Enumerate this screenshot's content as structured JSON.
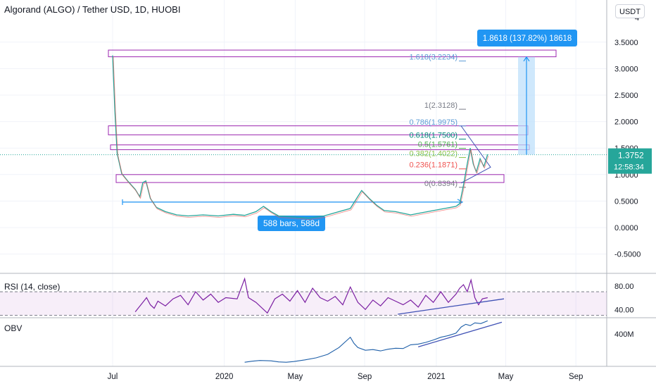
{
  "header": {
    "title": "Algorand (ALGO) / Tether USD, 1D, HUOBI",
    "currency_button": "USDT"
  },
  "chart_data": [
    {
      "type": "line",
      "id": "price",
      "y_ticks": [
        "3.5000",
        "3.0000",
        "2.5000",
        "2.0000",
        "1.5000",
        "1.0000",
        "0.5000",
        "0.0000",
        "-0.5000"
      ],
      "y_tick_values": [
        3.5,
        3.0,
        2.5,
        2.0,
        1.5,
        1.0,
        0.5,
        0.0,
        -0.5
      ],
      "ylim": [
        -0.8,
        4.1
      ],
      "x_ticks": [
        "Jul",
        "2020",
        "May",
        "Sep",
        "2021",
        "May",
        "Sep"
      ],
      "last_price": "1.3752",
      "last_price_value": 1.3752,
      "countdown": "12:58:34",
      "colors": {
        "up": "#26a69a",
        "down": "#ef5350",
        "fib_box": "#9c27b0",
        "measure": "#2196f3"
      },
      "series": [
        {
          "name": "ALGO/USDT",
          "values": [
            [
              0,
              3.25
            ],
            [
              3,
              2.2
            ],
            [
              6,
              1.4
            ],
            [
              12,
              1.02
            ],
            [
              20,
              0.88
            ],
            [
              30,
              0.72
            ],
            [
              36,
              0.58
            ],
            [
              40,
              0.85
            ],
            [
              44,
              0.88
            ],
            [
              50,
              0.55
            ],
            [
              58,
              0.38
            ],
            [
              70,
              0.3
            ],
            [
              85,
              0.24
            ],
            [
              100,
              0.22
            ],
            [
              120,
              0.24
            ],
            [
              140,
              0.22
            ],
            [
              160,
              0.25
            ],
            [
              175,
              0.23
            ],
            [
              190,
              0.3
            ],
            [
              200,
              0.4
            ],
            [
              210,
              0.3
            ],
            [
              220,
              0.22
            ],
            [
              240,
              0.2
            ],
            [
              260,
              0.18
            ],
            [
              280,
              0.22
            ],
            [
              300,
              0.3
            ],
            [
              315,
              0.36
            ],
            [
              330,
              0.7
            ],
            [
              340,
              0.55
            ],
            [
              350,
              0.42
            ],
            [
              360,
              0.32
            ],
            [
              375,
              0.3
            ],
            [
              395,
              0.24
            ],
            [
              410,
              0.28
            ],
            [
              425,
              0.32
            ],
            [
              440,
              0.36
            ],
            [
              455,
              0.4
            ],
            [
              460,
              0.45
            ],
            [
              465,
              0.8
            ],
            [
              470,
              1.2
            ],
            [
              474,
              1.5
            ],
            [
              478,
              1.2
            ],
            [
              482,
              1.05
            ],
            [
              487,
              1.3
            ],
            [
              492,
              1.15
            ],
            [
              497,
              1.38
            ]
          ]
        }
      ],
      "annotations": {
        "fib_levels": [
          {
            "label": "1.618(3.2234)",
            "value": 3.2234,
            "color": "#5b9bd5"
          },
          {
            "label": "1(2.3128)",
            "value": 2.3128,
            "color": "#787b86"
          },
          {
            "label": "0.786(1.9975)",
            "value": 1.9975,
            "color": "#5b9bd5"
          },
          {
            "label": "0.618(1.7500)",
            "value": 1.75,
            "color": "#00897b"
          },
          {
            "label": "0.5(1.5761)",
            "value": 1.5761,
            "color": "#4caf50"
          },
          {
            "label": "0.382(1.4022)",
            "value": 1.4022,
            "color": "#8bc34a"
          },
          {
            "label": "0.236(1.1871)",
            "value": 1.1871,
            "color": "#ef5350"
          },
          {
            "label": "0(0.8394)",
            "value": 0.8394,
            "color": "#787b86"
          }
        ],
        "range_label": "588 bars, 588d",
        "measure_label": "1.8618 (137.82%) 18618"
      }
    },
    {
      "type": "line",
      "id": "rsi",
      "title": "RSI (14, close)",
      "y_ticks": [
        "80.00",
        "40.00"
      ],
      "y_tick_values": [
        80,
        40
      ],
      "ylim": [
        26,
        100
      ],
      "band": [
        30,
        70
      ],
      "series": [
        {
          "name": "RSI",
          "values": [
            [
              30,
              36
            ],
            [
              40,
              52
            ],
            [
              45,
              60
            ],
            [
              50,
              48
            ],
            [
              55,
              42
            ],
            [
              60,
              54
            ],
            [
              70,
              46
            ],
            [
              80,
              58
            ],
            [
              90,
              64
            ],
            [
              100,
              48
            ],
            [
              110,
              70
            ],
            [
              120,
              56
            ],
            [
              130,
              66
            ],
            [
              140,
              52
            ],
            [
              150,
              60
            ],
            [
              165,
              58
            ],
            [
              175,
              92
            ],
            [
              180,
              60
            ],
            [
              190,
              52
            ],
            [
              205,
              34
            ],
            [
              215,
              58
            ],
            [
              225,
              66
            ],
            [
              235,
              54
            ],
            [
              245,
              72
            ],
            [
              255,
              52
            ],
            [
              265,
              76
            ],
            [
              275,
              60
            ],
            [
              285,
              54
            ],
            [
              295,
              62
            ],
            [
              305,
              48
            ],
            [
              315,
              78
            ],
            [
              325,
              52
            ],
            [
              335,
              40
            ],
            [
              345,
              56
            ],
            [
              355,
              46
            ],
            [
              365,
              60
            ],
            [
              375,
              54
            ],
            [
              385,
              48
            ],
            [
              395,
              56
            ],
            [
              405,
              44
            ],
            [
              415,
              64
            ],
            [
              425,
              52
            ],
            [
              435,
              70
            ],
            [
              445,
              52
            ],
            [
              455,
              66
            ],
            [
              460,
              76
            ],
            [
              465,
              82
            ],
            [
              470,
              70
            ],
            [
              475,
              90
            ],
            [
              480,
              60
            ],
            [
              485,
              48
            ],
            [
              490,
              58
            ],
            [
              497,
              60
            ]
          ]
        }
      ]
    },
    {
      "type": "line",
      "id": "obv",
      "title": "OBV",
      "y_ticks": [
        "400M"
      ],
      "y_tick_values": [
        400
      ],
      "ylim": [
        -550,
        850
      ],
      "series": [
        {
          "name": "OBV",
          "values": [
            [
              175,
              -430
            ],
            [
              185,
              -400
            ],
            [
              195,
              -380
            ],
            [
              210,
              -390
            ],
            [
              220,
              -420
            ],
            [
              230,
              -430
            ],
            [
              240,
              -410
            ],
            [
              255,
              -360
            ],
            [
              270,
              -300
            ],
            [
              285,
              -200
            ],
            [
              300,
              0
            ],
            [
              310,
              200
            ],
            [
              315,
              300
            ],
            [
              320,
              120
            ],
            [
              325,
              0
            ],
            [
              335,
              -80
            ],
            [
              345,
              -60
            ],
            [
              355,
              -100
            ],
            [
              365,
              -50
            ],
            [
              375,
              -20
            ],
            [
              385,
              -30
            ],
            [
              395,
              80
            ],
            [
              405,
              100
            ],
            [
              415,
              150
            ],
            [
              425,
              220
            ],
            [
              435,
              300
            ],
            [
              445,
              350
            ],
            [
              455,
              420
            ],
            [
              462,
              600
            ],
            [
              468,
              680
            ],
            [
              474,
              640
            ],
            [
              480,
              720
            ],
            [
              488,
              700
            ],
            [
              497,
              780
            ]
          ]
        }
      ]
    }
  ]
}
